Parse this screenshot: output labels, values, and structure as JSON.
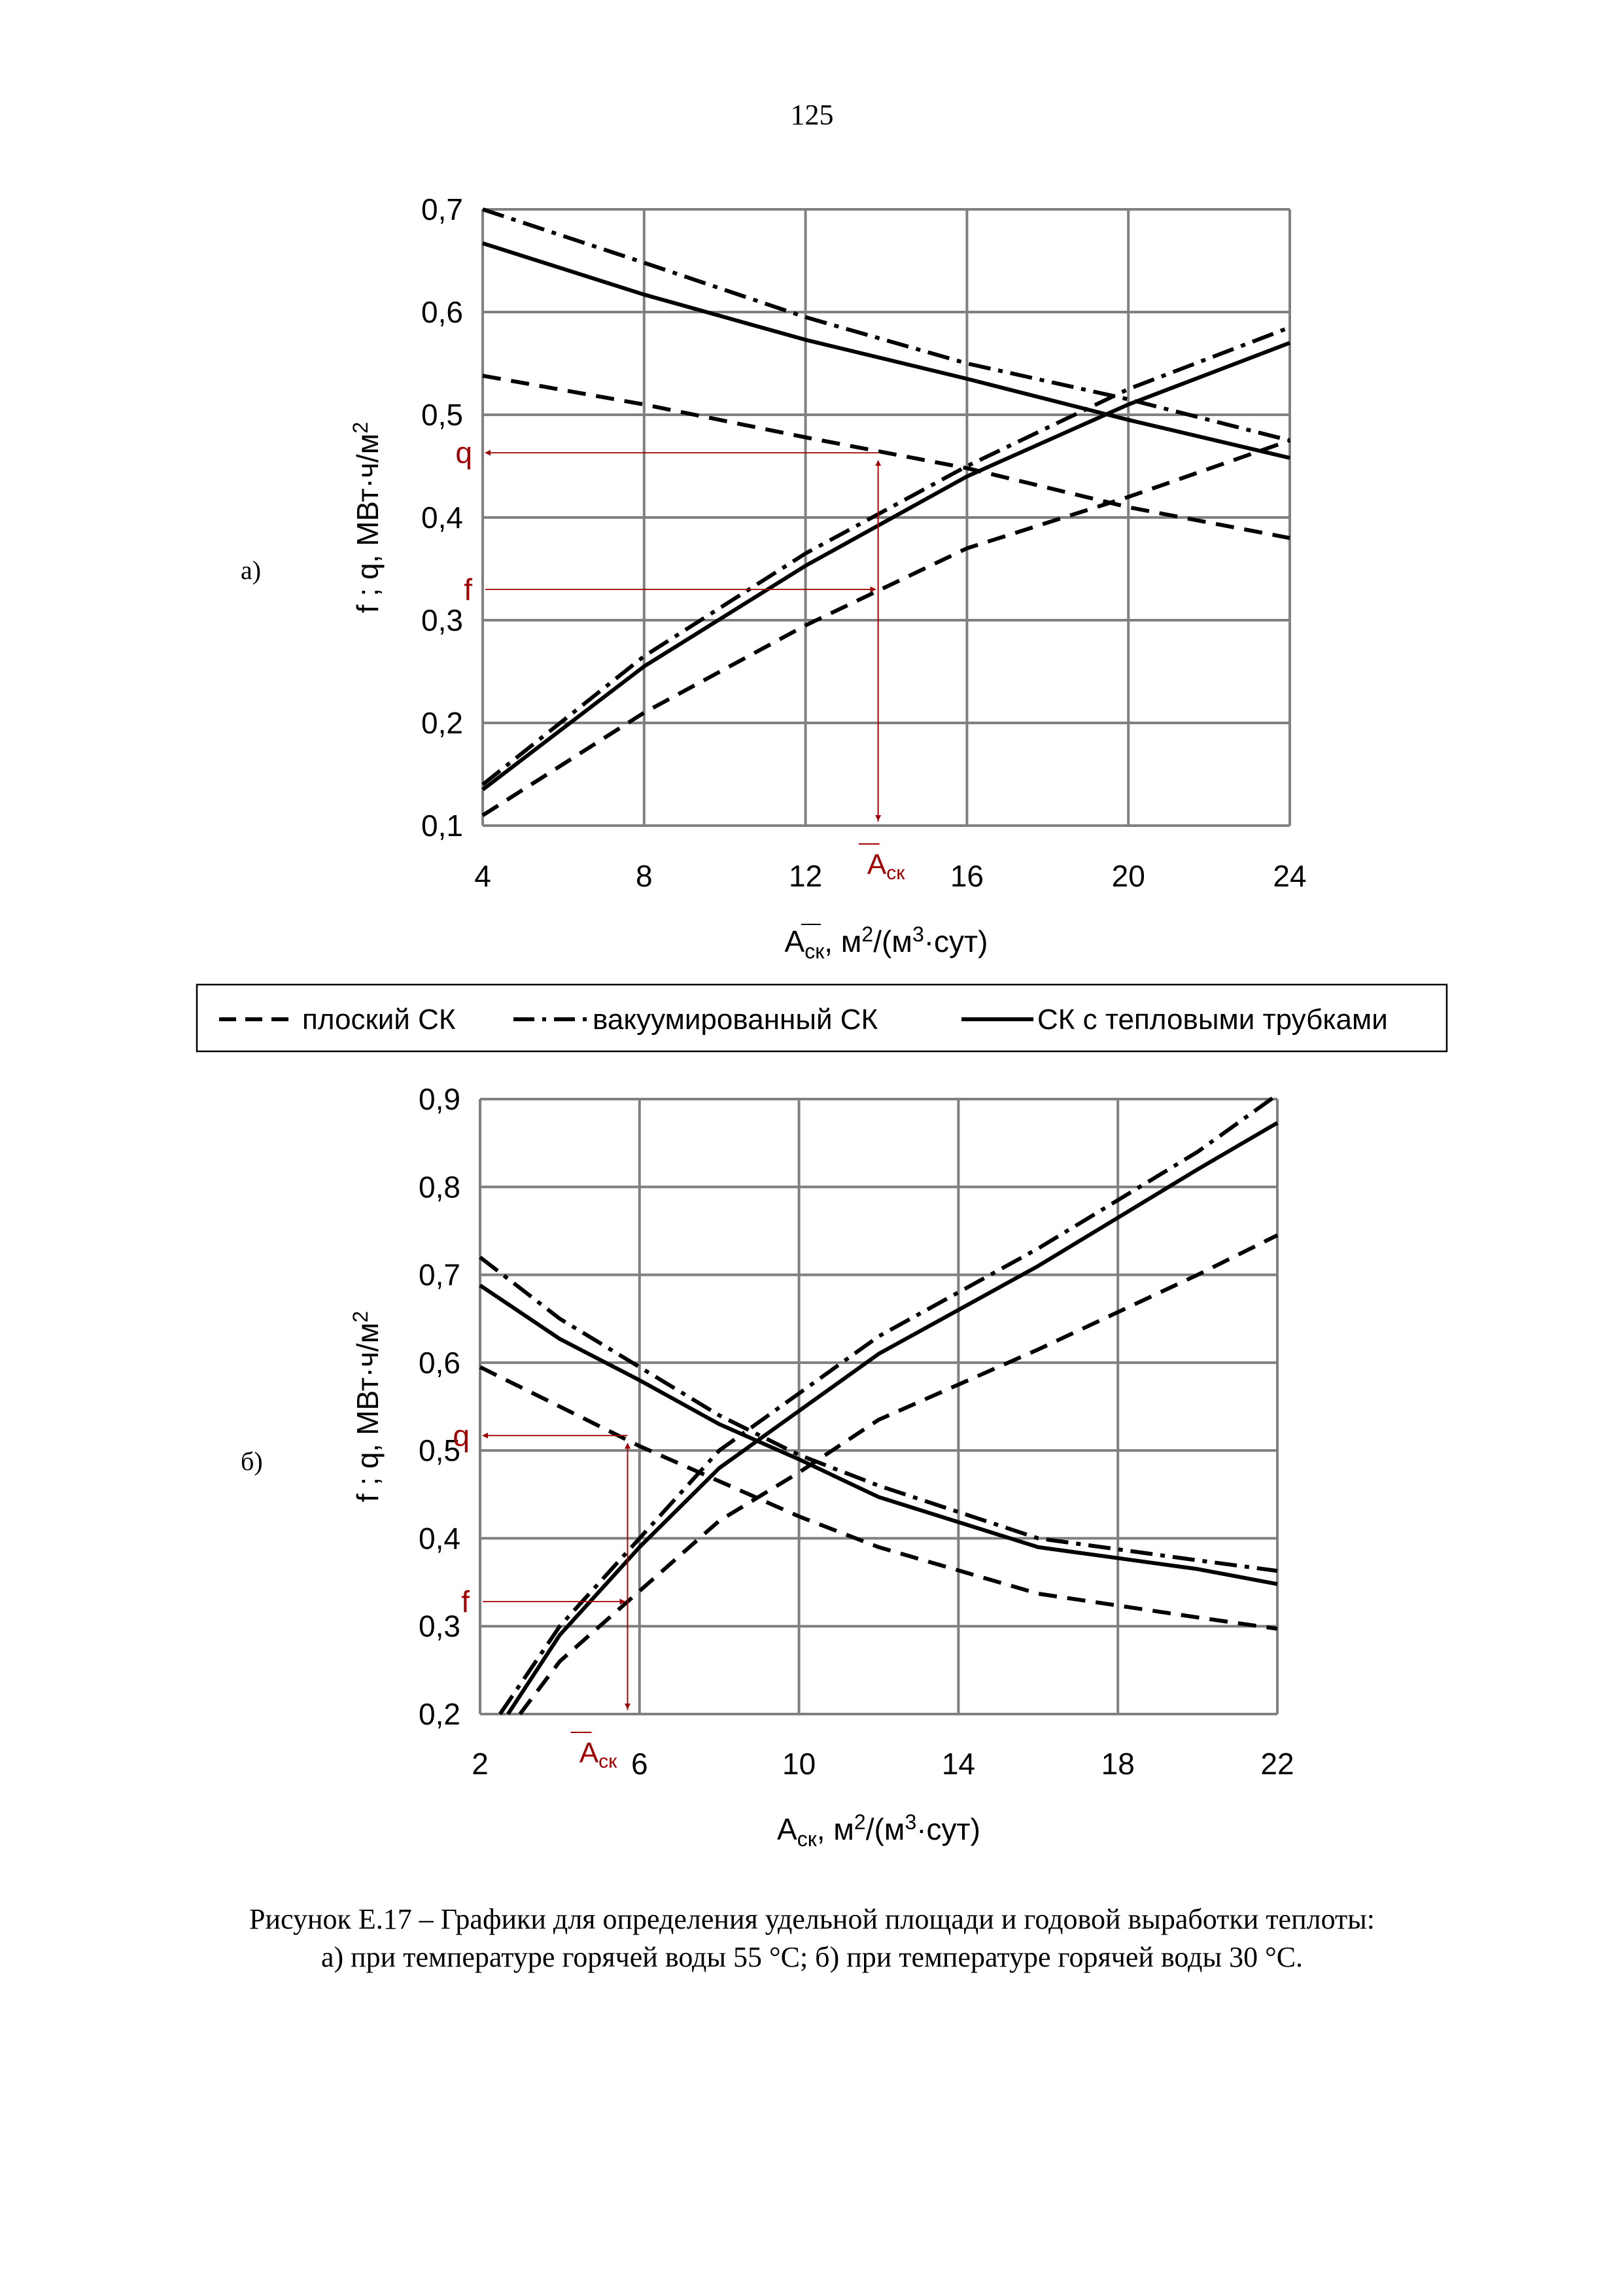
{
  "page_number": "125",
  "panel_labels": [
    "а)",
    "б)"
  ],
  "legend": {
    "items": [
      {
        "label": "плоский СК",
        "style": "dashed"
      },
      {
        "label": "вакуумированный СК",
        "style": "dashdot"
      },
      {
        "label": "СК с тепловыми трубками",
        "style": "solid"
      }
    ]
  },
  "caption": {
    "line1": "Рисунок Е.17 – Графики для определения удельной площади и годовой выработки теплоты:",
    "line2": "а) при температуре горячей воды 55 °С; б) при температуре горячей воды 30 °С."
  },
  "colors": {
    "annotation": "#a00000",
    "grid": "#808080",
    "lines": "#000000"
  },
  "chart_data": [
    {
      "type": "line",
      "id": "a",
      "xlabel": "A̅ск, м²/(м³·сут)",
      "xlabel_main": "A",
      "xlabel_sub": "ск",
      "xlabel_rest": ", м",
      "xlabel_sup1": "2",
      "xlabel_rest2": "/(м",
      "xlabel_sup2": "3",
      "xlabel_rest3": "·сут)",
      "ylabel": "f ;  q, МВт·ч/м²",
      "ylabel_main": "f ;  q, МВт·ч/м",
      "ylabel_sup": "2",
      "xlim": [
        4,
        24
      ],
      "ylim": [
        0.1,
        0.7
      ],
      "xticks": [
        4,
        8,
        12,
        16,
        20,
        24
      ],
      "yticks": [
        0.1,
        0.2,
        0.3,
        0.4,
        0.5,
        0.6,
        0.7
      ],
      "xtick_labels": [
        "4",
        "8",
        "12",
        "16",
        "20",
        "24"
      ],
      "ytick_labels": [
        "0,1",
        "0,2",
        "0,3",
        "0,4",
        "0,5",
        "0,6",
        "0,7"
      ],
      "series": [
        {
          "name": "плоский СК (f)",
          "style": "dashed",
          "x": [
            4,
            8,
            12,
            16,
            20,
            24
          ],
          "values": [
            0.11,
            0.21,
            0.295,
            0.37,
            0.42,
            0.475
          ]
        },
        {
          "name": "плоский СК (q)",
          "style": "dashed",
          "x": [
            4,
            8,
            12,
            16,
            20,
            24
          ],
          "values": [
            0.538,
            0.51,
            0.478,
            0.448,
            0.41,
            0.38
          ]
        },
        {
          "name": "вакуумированный СК (f)",
          "style": "dashdot",
          "x": [
            4,
            8,
            12,
            16,
            20,
            24
          ],
          "values": [
            0.14,
            0.265,
            0.365,
            0.45,
            0.525,
            0.585
          ]
        },
        {
          "name": "вакуумированный СК (q)",
          "style": "dashdot",
          "x": [
            4,
            8,
            12,
            16,
            20,
            24
          ],
          "values": [
            0.7,
            0.648,
            0.595,
            0.55,
            0.515,
            0.475
          ]
        },
        {
          "name": "СК с тепловыми трубками (f)",
          "style": "solid",
          "x": [
            4,
            8,
            12,
            16,
            20,
            24
          ],
          "values": [
            0.135,
            0.255,
            0.353,
            0.44,
            0.51,
            0.57
          ]
        },
        {
          "name": "СК с тепловыми трубками (q)",
          "style": "solid",
          "x": [
            4,
            8,
            12,
            16,
            20,
            24
          ],
          "values": [
            0.667,
            0.617,
            0.573,
            0.535,
            0.495,
            0.458
          ]
        }
      ],
      "annotations": {
        "x_value": 13.8,
        "q_value": 0.463,
        "f_value": 0.33,
        "q_label": "q",
        "f_label": "f",
        "a_label_main": "A",
        "a_label_sub": "ск"
      }
    },
    {
      "type": "line",
      "id": "b",
      "xlabel": "Aск, м²/(м³·сут)",
      "xlabel_main": "A",
      "xlabel_sub": "ск",
      "xlabel_rest": ", м",
      "xlabel_sup1": "2",
      "xlabel_rest2": "/(м",
      "xlabel_sup2": "3",
      "xlabel_rest3": "·сут)",
      "ylabel": "f ;  q, МВт·ч/м²",
      "ylabel_main": "f ;  q, МВт·ч/м",
      "ylabel_sup": "2",
      "xlim": [
        2,
        22
      ],
      "ylim": [
        0.2,
        0.9
      ],
      "xticks": [
        2,
        6,
        10,
        14,
        18,
        22
      ],
      "yticks": [
        0.2,
        0.3,
        0.4,
        0.5,
        0.6,
        0.7,
        0.8,
        0.9
      ],
      "xtick_labels": [
        "2",
        "6",
        "10",
        "14",
        "18",
        "22"
      ],
      "ytick_labels": [
        "0,2",
        "0,3",
        "0,4",
        "0,5",
        "0,6",
        "0,7",
        "0,8",
        "0,9"
      ],
      "series": [
        {
          "name": "плоский СК (f)",
          "style": "dashed",
          "x": [
            3,
            4,
            6,
            8,
            10,
            12,
            16,
            20,
            22
          ],
          "values": [
            0.2,
            0.26,
            0.34,
            0.42,
            0.475,
            0.535,
            0.615,
            0.7,
            0.745
          ]
        },
        {
          "name": "плоский СК (q)",
          "style": "dashed",
          "x": [
            2,
            6,
            8,
            10,
            12,
            16,
            20,
            22
          ],
          "values": [
            0.595,
            0.505,
            0.465,
            0.425,
            0.39,
            0.337,
            0.31,
            0.297
          ]
        },
        {
          "name": "вакуумированный СК (f)",
          "style": "dashdot",
          "x": [
            2.5,
            4,
            6,
            8,
            10,
            12,
            16,
            20,
            22
          ],
          "values": [
            0.2,
            0.3,
            0.4,
            0.5,
            0.565,
            0.63,
            0.73,
            0.84,
            0.905
          ]
        },
        {
          "name": "вакуумированный СК (q)",
          "style": "dashdot",
          "x": [
            2,
            4,
            6,
            8,
            10,
            12,
            16,
            20,
            22
          ],
          "values": [
            0.72,
            0.65,
            0.595,
            0.54,
            0.495,
            0.46,
            0.4,
            0.375,
            0.363
          ]
        },
        {
          "name": "СК с тепловыми трубками (f)",
          "style": "solid",
          "x": [
            2.7,
            4,
            6,
            8,
            10,
            12,
            16,
            20,
            22
          ],
          "values": [
            0.2,
            0.29,
            0.39,
            0.48,
            0.545,
            0.61,
            0.71,
            0.82,
            0.873
          ]
        },
        {
          "name": "СК с тепловыми трубками (q)",
          "style": "solid",
          "x": [
            2,
            4,
            6,
            8,
            10,
            12,
            16,
            20,
            22
          ],
          "values": [
            0.688,
            0.627,
            0.58,
            0.53,
            0.49,
            0.447,
            0.39,
            0.365,
            0.348
          ]
        }
      ],
      "annotations": {
        "x_value": 5.7,
        "q_value": 0.517,
        "f_value": 0.328,
        "q_label": "q",
        "f_label": "f",
        "a_label_main": "A",
        "a_label_sub": "ск"
      }
    }
  ]
}
